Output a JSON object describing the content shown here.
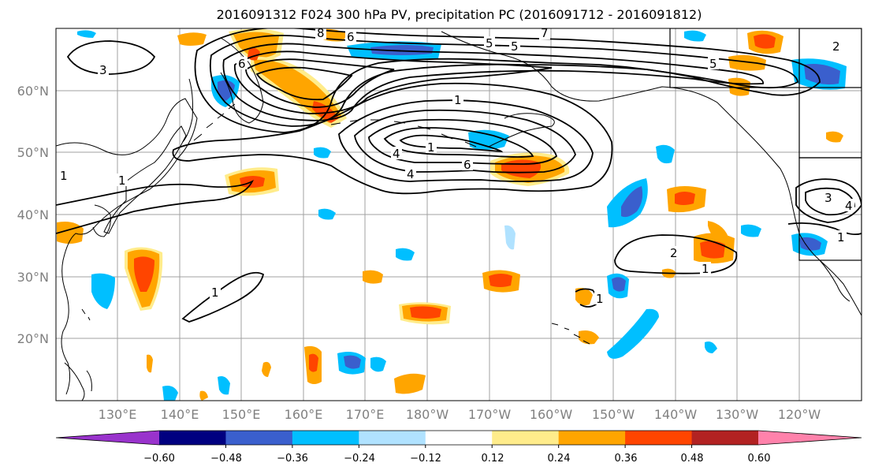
{
  "title": "2016091312 F024 300 hPa PV, precipitation PC (2016091712 - 2016091812)",
  "map": {
    "lat_labels": [
      "60°N",
      "50°N",
      "40°N",
      "30°N",
      "20°N"
    ],
    "lon_labels": [
      "130°E",
      "140°E",
      "150°E",
      "160°E",
      "170°E",
      "180°W",
      "170°W",
      "160°W",
      "150°W",
      "140°W",
      "130°W",
      "120°W"
    ],
    "contour_labels": [
      "3",
      "1",
      "1",
      "5",
      "1",
      "1",
      "4",
      "4",
      "6",
      "6",
      "5",
      "2",
      "3",
      "4",
      "2",
      "1",
      "1",
      "1",
      "1",
      "8",
      "6",
      "7",
      "5"
    ]
  },
  "colorbar": {
    "colors": [
      "#9933cc",
      "#000080",
      "#3a5fcd",
      "#00bfff",
      "#b0e2ff",
      "#ffffff",
      "#ffec8b",
      "#ffa500",
      "#ff4500",
      "#b22222",
      "#ff82ab"
    ],
    "tick_labels": [
      "−0.60",
      "−0.48",
      "−0.36",
      "−0.24",
      "−0.12",
      "0.12",
      "0.24",
      "0.36",
      "0.48",
      "0.60"
    ]
  },
  "colors": {
    "grid": "#a0a0a0",
    "coast": "#000000",
    "contour": "#000000"
  }
}
